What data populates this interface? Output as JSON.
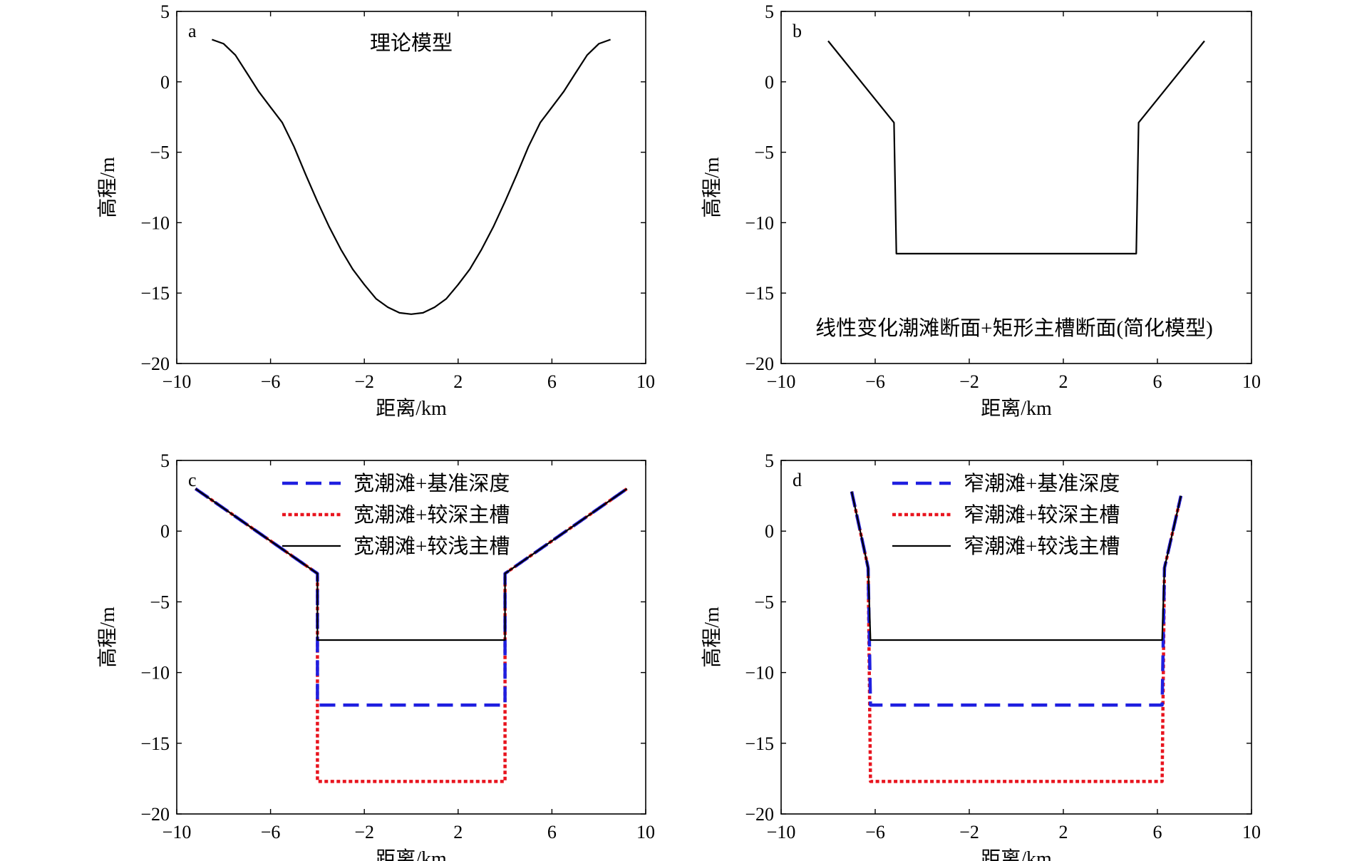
{
  "figure": {
    "panels": [
      "a",
      "b",
      "c",
      "d"
    ]
  },
  "chart_data": [
    {
      "type": "line",
      "panel_letter": "a",
      "annotation": "理论模型",
      "xlabel": "距离/km",
      "ylabel": "高程/m",
      "xlim": [
        -10,
        10
      ],
      "ylim": [
        -20,
        5
      ],
      "xticks": [
        -10,
        -6,
        -2,
        2,
        6,
        10
      ],
      "yticks": [
        5,
        0,
        -5,
        -10,
        -15,
        -20
      ],
      "xtick_labels": [
        "−10",
        "−6",
        "−2",
        "2",
        "6",
        "10"
      ],
      "ytick_labels": [
        "5",
        "0",
        "−5",
        "−10",
        "−15",
        "−20"
      ],
      "legend": null,
      "series": [
        {
          "style": "solid",
          "color": "#000000",
          "x": [
            -8.5,
            -8.0,
            -7.5,
            -7.0,
            -6.5,
            -6.0,
            -5.5,
            -5.0,
            -4.5,
            -4.0,
            -3.5,
            -3.0,
            -2.5,
            -2.0,
            -1.5,
            -1.0,
            -0.5,
            0.0,
            0.5,
            1.0,
            1.5,
            2.0,
            2.5,
            3.0,
            3.5,
            4.0,
            4.5,
            5.0,
            5.5,
            6.0,
            6.5,
            7.0,
            7.5,
            8.0,
            8.5
          ],
          "y": [
            3.0,
            2.7,
            1.9,
            0.6,
            -0.7,
            -1.8,
            -2.9,
            -4.6,
            -6.6,
            -8.5,
            -10.3,
            -11.9,
            -13.3,
            -14.4,
            -15.4,
            -16.0,
            -16.4,
            -16.5,
            -16.4,
            -16.0,
            -15.4,
            -14.4,
            -13.3,
            -11.9,
            -10.3,
            -8.5,
            -6.6,
            -4.6,
            -2.9,
            -1.8,
            -0.7,
            0.6,
            1.9,
            2.7,
            3.0
          ]
        }
      ]
    },
    {
      "type": "line",
      "panel_letter": "b",
      "annotation": "线性变化潮滩断面+矩形主槽断面(简化模型)",
      "xlabel": "距离/km",
      "ylabel": "高程/m",
      "xlim": [
        -10,
        10
      ],
      "ylim": [
        -20,
        5
      ],
      "xticks": [
        -10,
        -6,
        -2,
        2,
        6,
        10
      ],
      "yticks": [
        5,
        0,
        -5,
        -10,
        -15,
        -20
      ],
      "xtick_labels": [
        "−10",
        "−6",
        "−2",
        "2",
        "6",
        "10"
      ],
      "ytick_labels": [
        "5",
        "0",
        "−5",
        "−10",
        "−15",
        "−20"
      ],
      "legend": null,
      "series": [
        {
          "style": "solid",
          "color": "#000000",
          "x": [
            -8.0,
            -5.2,
            -5.1,
            5.1,
            5.2,
            8.0
          ],
          "y": [
            2.9,
            -2.9,
            -12.2,
            -12.2,
            -2.9,
            2.9
          ]
        }
      ]
    },
    {
      "type": "line",
      "panel_letter": "c",
      "annotation": "",
      "xlabel": "距离/km",
      "ylabel": "高程/m",
      "xlim": [
        -10,
        10
      ],
      "ylim": [
        -20,
        5
      ],
      "xticks": [
        -10,
        -6,
        -2,
        2,
        6,
        10
      ],
      "yticks": [
        5,
        0,
        -5,
        -10,
        -15,
        -20
      ],
      "xtick_labels": [
        "−10",
        "−6",
        "−2",
        "2",
        "6",
        "10"
      ],
      "ytick_labels": [
        "5",
        "0",
        "−5",
        "−10",
        "−15",
        "−20"
      ],
      "legend": "top",
      "series": [
        {
          "name": "宽潮滩+基准深度",
          "style": "dashed",
          "color": "#1f1fe0",
          "x": [
            -9.2,
            -4.0,
            -4.0,
            4.0,
            4.0,
            9.2
          ],
          "y": [
            3.0,
            -3.0,
            -12.3,
            -12.3,
            -3.0,
            3.0
          ]
        },
        {
          "name": "宽潮滩+较深主槽",
          "style": "dotted",
          "color": "#e8141e",
          "x": [
            -9.2,
            -4.0,
            -4.0,
            4.0,
            4.0,
            9.2
          ],
          "y": [
            3.0,
            -3.0,
            -17.7,
            -17.7,
            -3.0,
            3.0
          ]
        },
        {
          "name": "宽潮滩+较浅主槽",
          "style": "solid",
          "color": "#000000",
          "x": [
            -9.2,
            -4.0,
            -4.0,
            4.0,
            4.0,
            9.2
          ],
          "y": [
            3.0,
            -3.0,
            -7.7,
            -7.7,
            -3.0,
            3.0
          ]
        }
      ]
    },
    {
      "type": "line",
      "panel_letter": "d",
      "annotation": "",
      "xlabel": "距离/km",
      "ylabel": "高程/m",
      "xlim": [
        -10,
        10
      ],
      "ylim": [
        -20,
        5
      ],
      "xticks": [
        -10,
        -6,
        -2,
        2,
        6,
        10
      ],
      "yticks": [
        5,
        0,
        -5,
        -10,
        -15,
        -20
      ],
      "xtick_labels": [
        "−10",
        "−6",
        "−2",
        "2",
        "6",
        "10"
      ],
      "ytick_labels": [
        "5",
        "0",
        "−5",
        "−10",
        "−15",
        "−20"
      ],
      "legend": "top",
      "series": [
        {
          "name": "窄潮滩+基准深度",
          "style": "dashed",
          "color": "#1f1fe0",
          "x": [
            -7.0,
            -6.3,
            -6.2,
            6.2,
            6.3,
            7.0
          ],
          "y": [
            2.8,
            -2.6,
            -12.3,
            -12.3,
            -2.6,
            2.5
          ]
        },
        {
          "name": "窄潮滩+较深主槽",
          "style": "dotted",
          "color": "#e8141e",
          "x": [
            -7.0,
            -6.3,
            -6.2,
            6.2,
            6.3,
            7.0
          ],
          "y": [
            2.8,
            -2.6,
            -17.7,
            -17.7,
            -2.6,
            2.5
          ]
        },
        {
          "name": "窄潮滩+较浅主槽",
          "style": "solid",
          "color": "#000000",
          "x": [
            -7.0,
            -6.3,
            -6.2,
            6.2,
            6.3,
            7.0
          ],
          "y": [
            2.8,
            -2.6,
            -7.7,
            -7.7,
            -2.6,
            2.5
          ]
        }
      ]
    }
  ]
}
